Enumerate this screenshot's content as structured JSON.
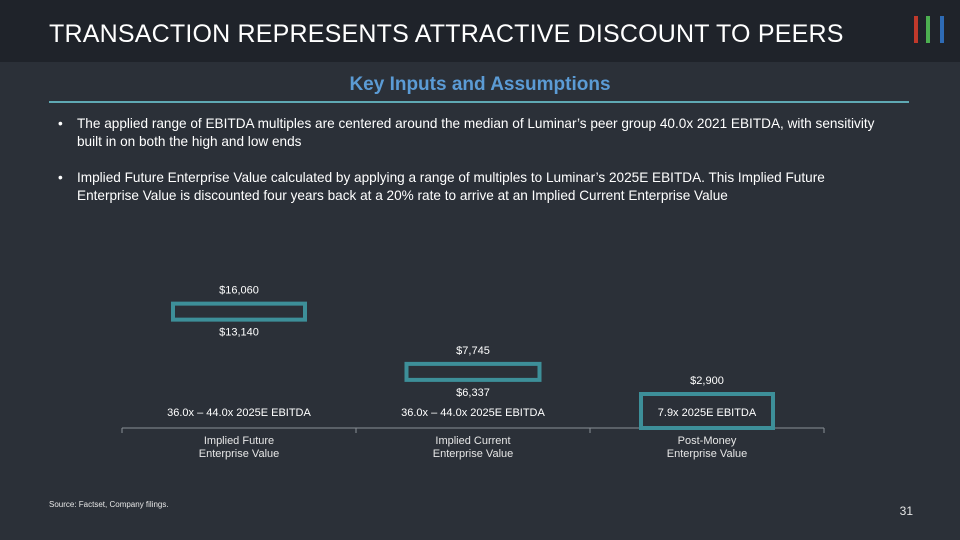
{
  "header": {
    "title": "TRANSACTION REPRESENTS ATTRACTIVE DISCOUNT TO PEERS"
  },
  "logo": {
    "colors": [
      "#c0392b",
      "#4caf50",
      "#2e6bb5"
    ]
  },
  "subtitle": "Key Inputs and Assumptions",
  "bullets": [
    "The applied range of EBITDA multiples are centered around the median of Luminar’s peer group 40.0x 2021 EBITDA, with sensitivity built in on both the high and low ends",
    "Implied Future Enterprise Value calculated by applying a range of multiples to Luminar’s 2025E EBITDA. This Implied Future Enterprise Value is discounted four years back at a 20% rate to arrive at an Implied Current Enterprise Value"
  ],
  "bullet_symbol": "•",
  "chart_data": {
    "type": "bar",
    "categories": [
      "Implied Future\nEnterprise Value",
      "Implied Current\nEnterprise Value",
      "Post-Money\nEnterprise Value"
    ],
    "ranges": [
      {
        "low": 13140,
        "high": 16060,
        "low_label": "$13,140",
        "high_label": "$16,060",
        "multiple_label": "36.0x – 44.0x 2025E EBITDA"
      },
      {
        "low": 6337,
        "high": 7745,
        "low_label": "$6,337",
        "high_label": "$7,745",
        "multiple_label": "36.0x – 44.0x 2025E EBITDA"
      },
      {
        "low": 2900,
        "high": 2900,
        "low_label": "",
        "high_label": "$2,900",
        "multiple_label": "7.9x 2025E EBITDA"
      }
    ],
    "bar_color": "#3d8f99"
  },
  "footer": {
    "source": "Source: Factset, Company filings.",
    "page_number": "31"
  }
}
